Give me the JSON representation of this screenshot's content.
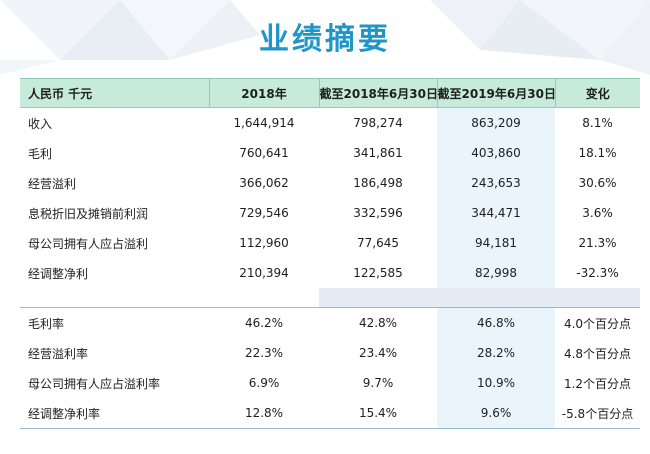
{
  "title": "业绩摘要",
  "table": {
    "headers": [
      "人民币 千元",
      "2018年",
      "截至2018年6月30日",
      "截至2019年6月30日",
      "变化"
    ],
    "section1": [
      [
        "收入",
        "1,644,914",
        "798,274",
        "863,209",
        "8.1%"
      ],
      [
        "毛利",
        "760,641",
        "341,861",
        "403,860",
        "18.1%"
      ],
      [
        "经营溢利",
        "366,062",
        "186,498",
        "243,653",
        "30.6%"
      ],
      [
        "息税折旧及摊销前利润",
        "729,546",
        "332,596",
        "344,471",
        "3.6%"
      ],
      [
        "母公司拥有人应占溢利",
        "112,960",
        "77,645",
        "94,181",
        "21.3%"
      ],
      [
        "经调整净利",
        "210,394",
        "122,585",
        "82,998",
        "-32.3%"
      ]
    ],
    "section2": [
      [
        "毛利率",
        "46.2%",
        "42.8%",
        "46.8%",
        "4.0个百分点"
      ],
      [
        "经营溢利率",
        "22.3%",
        "23.4%",
        "28.2%",
        "4.8个百分点"
      ],
      [
        "母公司拥有人应占溢利率",
        "6.9%",
        "9.7%",
        "10.9%",
        "1.2个百分点"
      ],
      [
        "经调整净利率",
        "12.8%",
        "15.4%",
        "9.6%",
        "-5.8个百分点"
      ]
    ]
  },
  "colors": {
    "title": "#1f96c8",
    "header_bg": "#c6ebdb",
    "highlight_column": "#eaf4fb",
    "background_triangles": "#eef2f7"
  }
}
